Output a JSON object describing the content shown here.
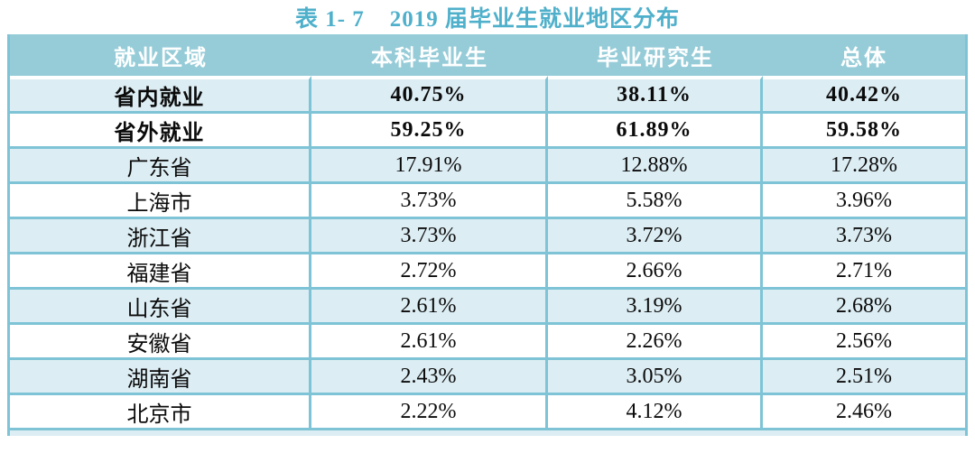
{
  "caption": {
    "label": "表 1- 7",
    "title": "2019 届毕业生就业地区分布"
  },
  "table": {
    "columns": [
      "就业区域",
      "本科毕业生",
      "毕业研究生",
      "总体"
    ],
    "rows": [
      {
        "region": "省内就业",
        "undergrad": "40.75%",
        "graduate": "38.11%",
        "overall": "40.42%",
        "bold": true
      },
      {
        "region": "省外就业",
        "undergrad": "59.25%",
        "graduate": "61.89%",
        "overall": "59.58%",
        "bold": true
      },
      {
        "region": "广东省",
        "undergrad": "17.91%",
        "graduate": "12.88%",
        "overall": "17.28%",
        "bold": false
      },
      {
        "region": "上海市",
        "undergrad": "3.73%",
        "graduate": "5.58%",
        "overall": "3.96%",
        "bold": false
      },
      {
        "region": "浙江省",
        "undergrad": "3.73%",
        "graduate": "3.72%",
        "overall": "3.73%",
        "bold": false
      },
      {
        "region": "福建省",
        "undergrad": "2.72%",
        "graduate": "2.66%",
        "overall": "2.71%",
        "bold": false
      },
      {
        "region": "山东省",
        "undergrad": "2.61%",
        "graduate": "3.19%",
        "overall": "2.68%",
        "bold": false
      },
      {
        "region": "安徽省",
        "undergrad": "2.61%",
        "graduate": "2.26%",
        "overall": "2.56%",
        "bold": false
      },
      {
        "region": "湖南省",
        "undergrad": "2.43%",
        "graduate": "3.05%",
        "overall": "2.51%",
        "bold": false
      },
      {
        "region": "北京市",
        "undergrad": "2.22%",
        "graduate": "4.12%",
        "overall": "2.46%",
        "bold": false
      }
    ]
  },
  "colors": {
    "header_bg": "#96ccd8",
    "border": "#7ec4d6",
    "row_alt_bg": "#dcedf3",
    "title_text": "#4fb0cb",
    "header_text": "#ffffff"
  },
  "chart_data": {
    "type": "table",
    "title": "表 1- 7 2019 届毕业生就业地区分布",
    "columns": [
      "就业区域",
      "本科毕业生",
      "毕业研究生",
      "总体"
    ],
    "rows": [
      [
        "省内就业",
        "40.75%",
        "38.11%",
        "40.42%"
      ],
      [
        "省外就业",
        "59.25%",
        "61.89%",
        "59.58%"
      ],
      [
        "广东省",
        "17.91%",
        "12.88%",
        "17.28%"
      ],
      [
        "上海市",
        "3.73%",
        "5.58%",
        "3.96%"
      ],
      [
        "浙江省",
        "3.73%",
        "3.72%",
        "3.73%"
      ],
      [
        "福建省",
        "2.72%",
        "2.66%",
        "2.71%"
      ],
      [
        "山东省",
        "2.61%",
        "3.19%",
        "2.68%"
      ],
      [
        "安徽省",
        "2.61%",
        "2.26%",
        "2.56%"
      ],
      [
        "湖南省",
        "2.43%",
        "3.05%",
        "2.51%"
      ],
      [
        "北京市",
        "2.22%",
        "4.12%",
        "2.46%"
      ]
    ]
  }
}
